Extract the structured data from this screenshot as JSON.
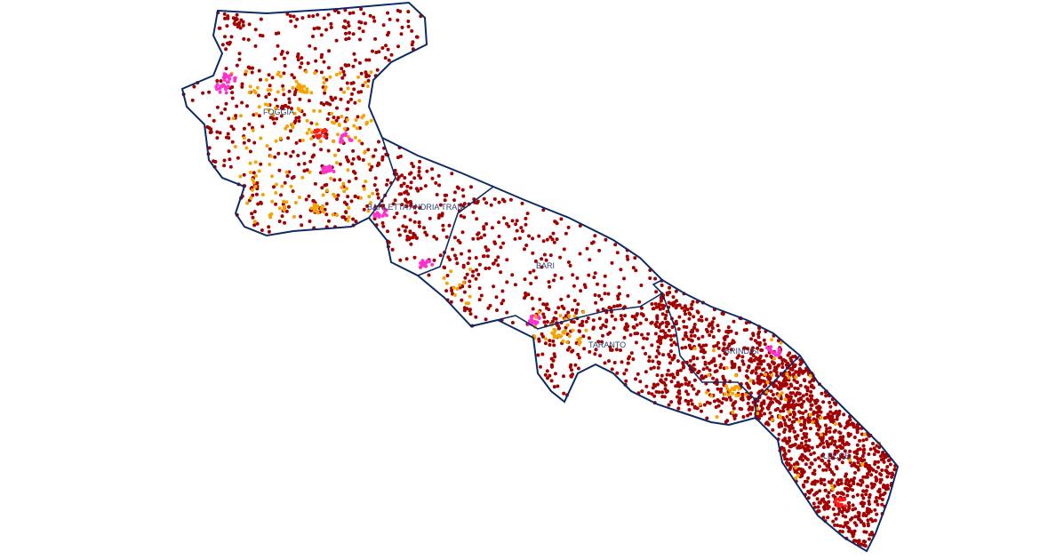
{
  "map": {
    "provinces": [
      {
        "name": "FOGGIA",
        "label": "FOGGIA"
      },
      {
        "name": "BARLETTA ANDRIA TRANI",
        "label": "BARLETTA ANDRIA TRANI"
      },
      {
        "name": "BARI",
        "label": "BARI"
      },
      {
        "name": "TARANTO",
        "label": "TARANTO"
      },
      {
        "name": "BRINDISI",
        "label": "BRINDISI"
      },
      {
        "name": "LECCE",
        "label": "LECCE"
      }
    ],
    "colors": {
      "boundary": "#0d2a66",
      "point_primary": "#a30000",
      "point_secondary": "#f5a300",
      "point_tertiary": "#ff33cc",
      "point_quaternary": "#ff1a1a"
    }
  }
}
